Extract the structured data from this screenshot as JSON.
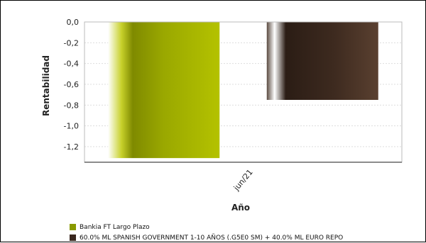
{
  "chart_data": {
    "type": "bar",
    "categories": [
      "jun/21"
    ],
    "series": [
      {
        "name": "Bankia FT Largo Plazo",
        "values": [
          -1.31
        ],
        "color": "#a5b400"
      },
      {
        "name": "60.0% ML SPANISH GOVERNMENT 1-10 AÑOS (.G5E0 SM) + 40.0% ML EURO REPO",
        "values": [
          -0.75
        ],
        "color": "#3a281e"
      }
    ],
    "xlabel": "Año",
    "ylabel": "Rentabilidad",
    "ylim": [
      -1.35,
      0.0
    ],
    "yticks": [
      "0,0",
      "-0,2",
      "-0,4",
      "-0,6",
      "-0,8",
      "-1,0",
      "-1,2"
    ],
    "ytick_values": [
      0.0,
      -0.2,
      -0.4,
      -0.6,
      -0.8,
      -1.0,
      -1.2
    ],
    "grid": true,
    "legend_position": "bottom-left"
  }
}
